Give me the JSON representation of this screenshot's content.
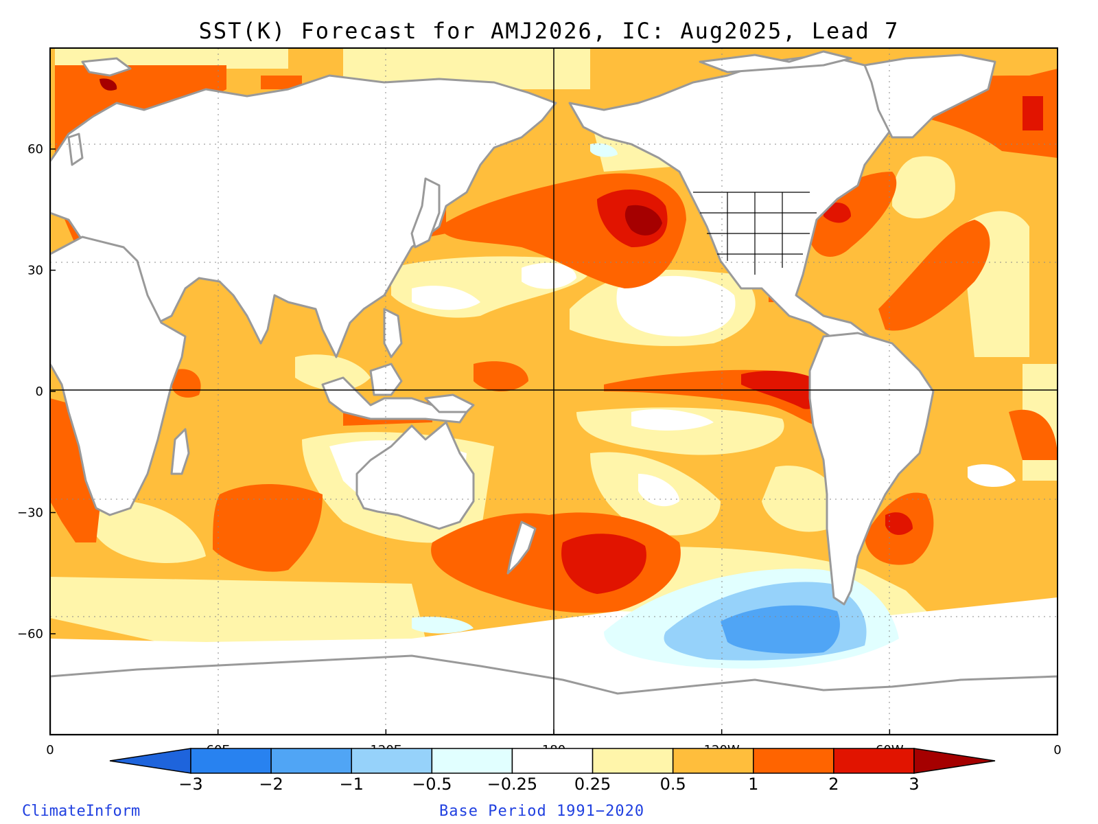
{
  "title": "SST(K) Forecast for AMJ2026, IC: Aug2025, Lead 7",
  "map": {
    "variable": "SST(K)",
    "lat_ticks": [
      {
        "value": 60,
        "label": "60"
      },
      {
        "value": 30,
        "label": "30"
      },
      {
        "value": 0,
        "label": "0"
      },
      {
        "value": -30,
        "label": "−30"
      },
      {
        "value": -60,
        "label": "−60"
      }
    ],
    "lon_ticks": [
      {
        "value": 0,
        "label": "0"
      },
      {
        "value": 60,
        "label": "60E"
      },
      {
        "value": 120,
        "label": "120E"
      },
      {
        "value": 180,
        "label": "180"
      },
      {
        "value": 240,
        "label": "120W"
      },
      {
        "value": 300,
        "label": "60W"
      },
      {
        "value": 360,
        "label": "0"
      }
    ],
    "lat_range": [
      -85,
      85
    ],
    "lon_range": [
      0,
      360
    ],
    "land_color": "#ffffff",
    "coast_color": "#999999",
    "anomaly_regions": [
      {
        "name": "north-pacific-warm-core",
        "level": 3,
        "lon": 200,
        "lat": 42
      },
      {
        "name": "south-pacific-warm-core",
        "level": 2,
        "lon": 192,
        "lat": -42
      },
      {
        "name": "equatorial-east-pacific-warm",
        "level": 2,
        "lon": 270,
        "lat": -2
      },
      {
        "name": "southern-ocean-cold",
        "level": -1,
        "lon": 255,
        "lat": -63
      }
    ]
  },
  "colorbar": {
    "boundaries": [
      "−3",
      "−2",
      "−1",
      "−0.5",
      "−0.25",
      "0.25",
      "0.5",
      "1",
      "2",
      "3"
    ],
    "colors": [
      "#1e64dc",
      "#2882f0",
      "#50a5f5",
      "#96d2fa",
      "#e1ffff",
      "#ffffff",
      "#fff5aa",
      "#ffbe3c",
      "#ff6400",
      "#e11400",
      "#a50000"
    ]
  },
  "footer": {
    "left": "ClimateInform",
    "center": "Base Period 1991−2020"
  }
}
